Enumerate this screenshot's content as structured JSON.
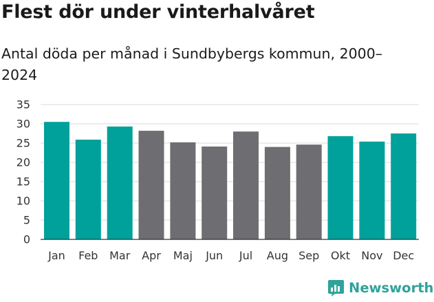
{
  "title": "Flest dör under vinterhalvåret",
  "subtitle": "Antal döda per månad i Sundbybergs kommun, 2000–2024",
  "brand": "Newsworthy",
  "colors": {
    "winter": "#00a19a",
    "summer": "#6e6d72",
    "grid": "#d9d9d9",
    "brand": "#2fa39a"
  },
  "chart_data": {
    "type": "bar",
    "title": "Flest dör under vinterhalvåret",
    "subtitle": "Antal döda per månad i Sundbybergs kommun, 2000–2024",
    "xlabel": "",
    "ylabel": "",
    "ylim": [
      0,
      35
    ],
    "yticks": [
      0,
      5,
      10,
      15,
      20,
      25,
      30,
      35
    ],
    "grid": true,
    "categories": [
      "Jan",
      "Feb",
      "Mar",
      "Apr",
      "Maj",
      "Jun",
      "Jul",
      "Aug",
      "Sep",
      "Okt",
      "Nov",
      "Dec"
    ],
    "values": [
      30.5,
      25.9,
      29.3,
      28.2,
      25.2,
      24.1,
      28.0,
      24.0,
      24.6,
      26.8,
      25.4,
      27.5
    ],
    "groups": [
      "winter",
      "winter",
      "winter",
      "summer",
      "summer",
      "summer",
      "summer",
      "summer",
      "summer",
      "winter",
      "winter",
      "winter"
    ]
  }
}
